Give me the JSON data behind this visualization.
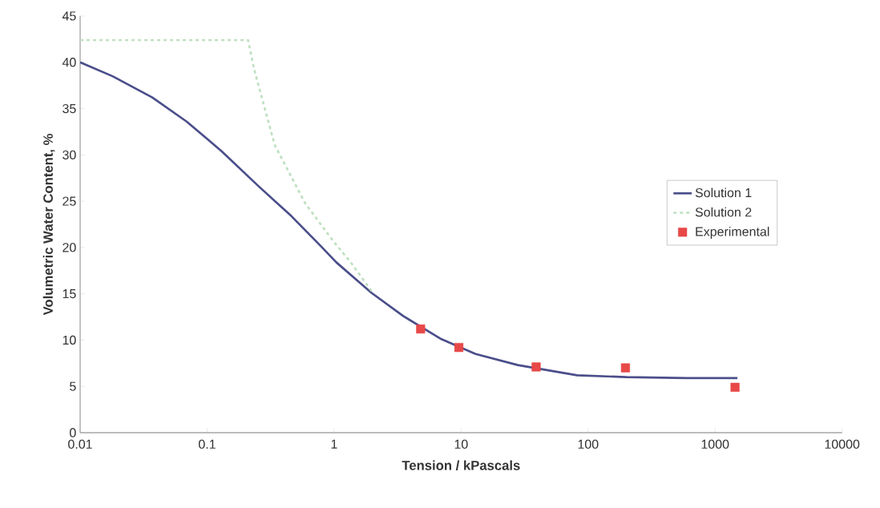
{
  "chart_data": {
    "type": "line",
    "xlabel": "Tension / kPascals",
    "ylabel": "Volumetric Water Content, %",
    "log": "x",
    "xlim": [
      0.01,
      10000
    ],
    "ylim": [
      0,
      45
    ],
    "xticks": [
      0.01,
      0.1,
      1,
      10,
      100,
      1000,
      10000
    ],
    "yticks": [
      0,
      5,
      10,
      15,
      20,
      25,
      30,
      35,
      40,
      45
    ],
    "grid": false,
    "legend": "right",
    "series": [
      {
        "name": "Solution 1",
        "color": "#4a4e8a",
        "line_style": "solid",
        "marker": "none",
        "x": [
          0.01,
          0.018,
          0.037,
          0.069,
          0.13,
          0.255,
          0.46,
          0.78,
          1.04,
          1.97,
          3.5,
          7,
          13,
          28,
          82,
          200,
          600,
          1500
        ],
        "values": [
          40.0,
          38.5,
          36.2,
          33.6,
          30.4,
          26.6,
          23.4,
          20.2,
          18.4,
          15.1,
          12.6,
          10.1,
          8.5,
          7.3,
          6.2,
          6.0,
          5.9,
          5.9
        ]
      },
      {
        "name": "Solution 2",
        "color": "#bfe0c0",
        "line_style": "dashed",
        "marker": "none",
        "x": [
          0.01,
          0.21,
          0.235,
          0.34,
          0.59,
          0.97,
          1.35,
          1.97
        ],
        "values": [
          42.4,
          42.4,
          39.2,
          31.1,
          24.8,
          20.8,
          18.4,
          15.3
        ]
      },
      {
        "name": "Experimental",
        "type": "scatter",
        "color": "#e84848",
        "marker": "square",
        "x": [
          4.8,
          9.6,
          39,
          197,
          1436
        ],
        "values": [
          11.2,
          9.2,
          7.1,
          7.0,
          4.9
        ]
      }
    ]
  }
}
